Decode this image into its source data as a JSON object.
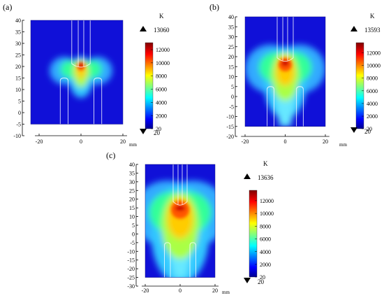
{
  "chart_data": [
    {
      "type": "heatmap",
      "panel_label": "(a)",
      "quantity_unit": "K",
      "x_unit": "mm",
      "x_ticks": [
        "-20",
        "0",
        "20"
      ],
      "y_ticks": [
        "-10",
        "-5",
        "0",
        "5",
        "10",
        "15",
        "20",
        "25",
        "30",
        "35",
        "40"
      ],
      "xlim": [
        -22,
        22
      ],
      "ylim": [
        -11,
        42
      ],
      "domain_x": [
        -24,
        20
      ],
      "domain_y": [
        -5,
        40
      ],
      "max_label": "13060",
      "min_label": "20",
      "colorbar_ticks": [
        "12000",
        "10000",
        "8000",
        "6000",
        "4000",
        "2000",
        "20"
      ],
      "colorbar_range": [
        20,
        13060
      ],
      "hot_core": {
        "x": 0,
        "y": 20
      },
      "upper_electrode_tip_y": 20,
      "lower_electrodes_top_y": 15
    },
    {
      "type": "heatmap",
      "panel_label": "(b)",
      "quantity_unit": "K",
      "x_unit": "mm",
      "x_ticks": [
        "-20",
        "0",
        "20"
      ],
      "y_ticks": [
        "-20",
        "-15",
        "-10",
        "-5",
        "0",
        "5",
        "10",
        "15",
        "20",
        "25",
        "30",
        "35",
        "40"
      ],
      "xlim": [
        -22,
        22
      ],
      "ylim": [
        -21,
        42
      ],
      "domain_x": [
        -20,
        20
      ],
      "domain_y": [
        -15,
        40
      ],
      "max_label": "13593",
      "min_label": "20",
      "colorbar_ticks": [
        "12000",
        "10000",
        "8000",
        "6000",
        "4000",
        "2000",
        "20"
      ],
      "colorbar_range": [
        20,
        13593
      ],
      "hot_core": {
        "x": 0,
        "y": 16
      },
      "upper_electrode_tip_y": 18,
      "lower_electrodes_top_y": 5
    },
    {
      "type": "heatmap",
      "panel_label": "(c)",
      "quantity_unit": "K",
      "x_unit": "mm",
      "x_ticks": [
        "-20",
        "0",
        "20"
      ],
      "y_ticks": [
        "-30",
        "-25",
        "-20",
        "-15",
        "-10",
        "-5",
        "0",
        "5",
        "10",
        "15",
        "20",
        "25",
        "30",
        "35",
        "40"
      ],
      "xlim": [
        -22,
        22
      ],
      "ylim": [
        -31,
        42
      ],
      "domain_x": [
        -20,
        20
      ],
      "domain_y": [
        -25,
        40
      ],
      "max_label": "13636",
      "min_label": "20",
      "colorbar_ticks": [
        "12000",
        "10000",
        "8000",
        "6000",
        "4000",
        "2000",
        "20"
      ],
      "colorbar_range": [
        20,
        13636
      ],
      "hot_core": {
        "x": 0,
        "y": 14
      },
      "upper_electrode_tip_y": 17,
      "lower_electrodes_top_y": -5
    }
  ]
}
